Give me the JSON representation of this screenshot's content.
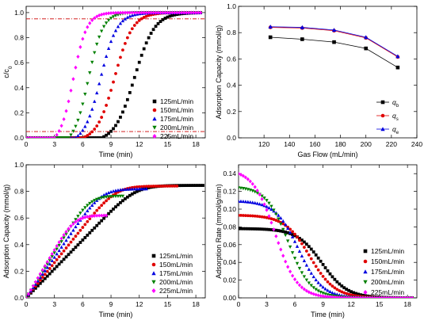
{
  "chart_data": [
    {
      "type": "scatter",
      "panel": "breakthrough",
      "xlabel": "Time (min)",
      "ylabel": "c/c",
      "ylabel_sub": "0",
      "xlim": [
        0,
        19
      ],
      "ylim": [
        0,
        1.05
      ],
      "xticks": [
        0,
        3,
        6,
        9,
        12,
        15,
        18
      ],
      "yticks": [
        0.0,
        0.2,
        0.4,
        0.6,
        0.8,
        1.0
      ],
      "reference_lines": [
        0.05,
        0.95
      ],
      "reference_color": "#cc0000",
      "legend_position": "bottom-right",
      "series": [
        {
          "name": "125mL/min",
          "marker": "square",
          "color": "#000000",
          "x0": 8.0,
          "t50": 11.5,
          "k": 0.95,
          "xmax": 18.5
        },
        {
          "name": "150mL/min",
          "marker": "circle",
          "color": "#e00000",
          "x0": 6.0,
          "t50": 9.4,
          "k": 1.05,
          "xmax": 18.5
        },
        {
          "name": "175mL/min",
          "marker": "triangle-up",
          "color": "#0000e0",
          "x0": 5.2,
          "t50": 7.9,
          "k": 1.15,
          "xmax": 18.5
        },
        {
          "name": "200mL/min",
          "marker": "triangle-down",
          "color": "#008000",
          "x0": 4.5,
          "t50": 6.6,
          "k": 1.3,
          "xmax": 18.5
        },
        {
          "name": "225mL/min",
          "marker": "diamond",
          "color": "#ff00ff",
          "x0": 3.0,
          "t50": 5.0,
          "k": 1.4,
          "xmax": 18.5
        }
      ]
    },
    {
      "type": "line",
      "panel": "capacity-vs-flow",
      "xlabel": "Gas Flow (mL/min)",
      "ylabel": "Adsorption Capacity (mmol/g)",
      "xlim": [
        100,
        240
      ],
      "ylim": [
        0.0,
        1.0
      ],
      "xticks": [
        120,
        140,
        160,
        180,
        200,
        220,
        240
      ],
      "yticks": [
        0.0,
        0.2,
        0.4,
        0.6,
        0.8,
        1.0
      ],
      "x": [
        125,
        150,
        175,
        200,
        225
      ],
      "legend_position": "bottom-right",
      "series": [
        {
          "name": "q",
          "sub": "b",
          "marker": "square",
          "color": "#000000",
          "values": [
            0.765,
            0.75,
            0.728,
            0.68,
            0.535
          ]
        },
        {
          "name": "q",
          "sub": "s",
          "marker": "circle",
          "color": "#e00000",
          "values": [
            0.84,
            0.835,
            0.815,
            0.76,
            0.615
          ]
        },
        {
          "name": "q",
          "sub": "e",
          "marker": "triangle-up",
          "color": "#0000e0",
          "values": [
            0.845,
            0.84,
            0.82,
            0.765,
            0.62
          ]
        }
      ]
    },
    {
      "type": "scatter",
      "panel": "capacity-vs-time",
      "xlabel": "Time (min)",
      "ylabel": "Adsorption Capacity (mmol/g)",
      "xlim": [
        0,
        19
      ],
      "ylim": [
        0.0,
        1.0
      ],
      "xticks": [
        0,
        3,
        6,
        9,
        12,
        15,
        18
      ],
      "yticks": [
        0.0,
        0.2,
        0.4,
        0.6,
        0.8,
        1.0
      ],
      "legend_position": "bottom-right",
      "series": [
        {
          "name": "125mL/min",
          "marker": "square",
          "color": "#000000",
          "qmax": 0.845,
          "x0": 8.0,
          "t50": 11.5,
          "k": 0.95,
          "xmax": 18.8
        },
        {
          "name": "150mL/min",
          "marker": "circle",
          "color": "#e00000",
          "qmax": 0.84,
          "x0": 6.0,
          "t50": 9.4,
          "k": 1.05,
          "xmax": 16.0
        },
        {
          "name": "175mL/min",
          "marker": "triangle-up",
          "color": "#0000e0",
          "qmax": 0.82,
          "x0": 5.2,
          "t50": 7.9,
          "k": 1.15,
          "xmax": 12.8
        },
        {
          "name": "200mL/min",
          "marker": "triangle-down",
          "color": "#008000",
          "qmax": 0.765,
          "x0": 4.5,
          "t50": 6.6,
          "k": 1.3,
          "xmax": 10.2
        },
        {
          "name": "225mL/min",
          "marker": "diamond",
          "color": "#ff00ff",
          "qmax": 0.62,
          "x0": 3.0,
          "t50": 5.0,
          "k": 1.4,
          "xmax": 8.6
        }
      ]
    },
    {
      "type": "scatter",
      "panel": "rate-vs-time",
      "xlabel": "Time (min)",
      "ylabel": "Adsorption Rate (mmol/g/min)",
      "xlim": [
        0,
        19
      ],
      "ylim": [
        0.0,
        0.15
      ],
      "xticks": [
        0,
        3,
        6,
        9,
        12,
        15,
        18
      ],
      "yticks": [
        0.0,
        0.02,
        0.04,
        0.06,
        0.08,
        0.1,
        0.12,
        0.14
      ],
      "legend_position": "bottom-right",
      "series": [
        {
          "name": "125mL/min",
          "marker": "square",
          "color": "#000000",
          "rmax": 0.078,
          "t50": 8.9,
          "k": 0.75,
          "xmax": 18.5
        },
        {
          "name": "150mL/min",
          "marker": "circle",
          "color": "#e00000",
          "rmax": 0.093,
          "t50": 7.6,
          "k": 0.75,
          "xmax": 18.5
        },
        {
          "name": "175mL/min",
          "marker": "triangle-up",
          "color": "#0000e0",
          "rmax": 0.109,
          "t50": 6.4,
          "k": 0.8,
          "xmax": 18.5
        },
        {
          "name": "200mL/min",
          "marker": "triangle-down",
          "color": "#008000",
          "rmax": 0.124,
          "t50": 5.3,
          "k": 0.85,
          "xmax": 18.5
        },
        {
          "name": "225mL/min",
          "marker": "diamond",
          "color": "#ff00ff",
          "rmax": 0.14,
          "t50": 3.9,
          "k": 0.85,
          "xmax": 18.5
        }
      ]
    }
  ]
}
